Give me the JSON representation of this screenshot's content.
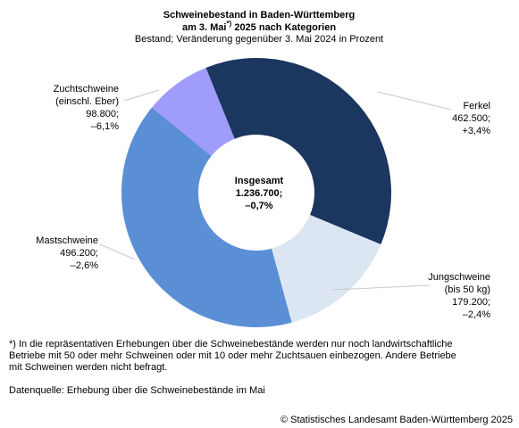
{
  "chart_data": {
    "type": "donut",
    "title": [
      "Schweinebestand in Baden-Württemberg",
      [
        "am 3. Mai",
        "*)",
        " 2025 nach Kategorien"
      ]
    ],
    "subtitle": "Bestand; Veränderung gegenüber 3. Mai 2024 in Prozent",
    "categories": [
      [
        "Ferkel"
      ],
      [
        "Jungschweine",
        "(bis 50 kg)"
      ],
      [
        "Mastschweine"
      ],
      [
        "Zuchtschweine",
        "(einschl. Eber)"
      ]
    ],
    "values": [
      462500,
      179200,
      496200,
      98800
    ],
    "value_labels": [
      "462.500;",
      "179.200;",
      "496.200;",
      "98.800;"
    ],
    "changes": [
      3.4,
      -2.4,
      -2.6,
      -6.1
    ],
    "change_labels": [
      "+3,4%",
      "–2,4%",
      "–2,6%",
      "–6,1%"
    ],
    "colors": [
      "#1b365f",
      "#dce6f2",
      "#5a8fd6",
      "#9f9cfd"
    ],
    "total_name": "Insgesamt",
    "total": 1236700,
    "total_label": "1.236.700;",
    "total_change": -0.7,
    "total_change_label": "–0,7%",
    "footnote": [
      "*) In die repräsentativen Erhebungen über die Schweinebestände werden nur noch landwirtschaftliche",
      "Betriebe mit 50 oder mehr Schweinen oder mit 10 oder mehr Zuchtsauen einbezogen. Andere Betriebe",
      "mit Schweinen werden nicht befragt."
    ],
    "source": "Datenquelle: Erhebung über die Schweinebestände im Mai",
    "copyright": "© Statistisches Landesamt Baden-Württemberg 2025"
  }
}
